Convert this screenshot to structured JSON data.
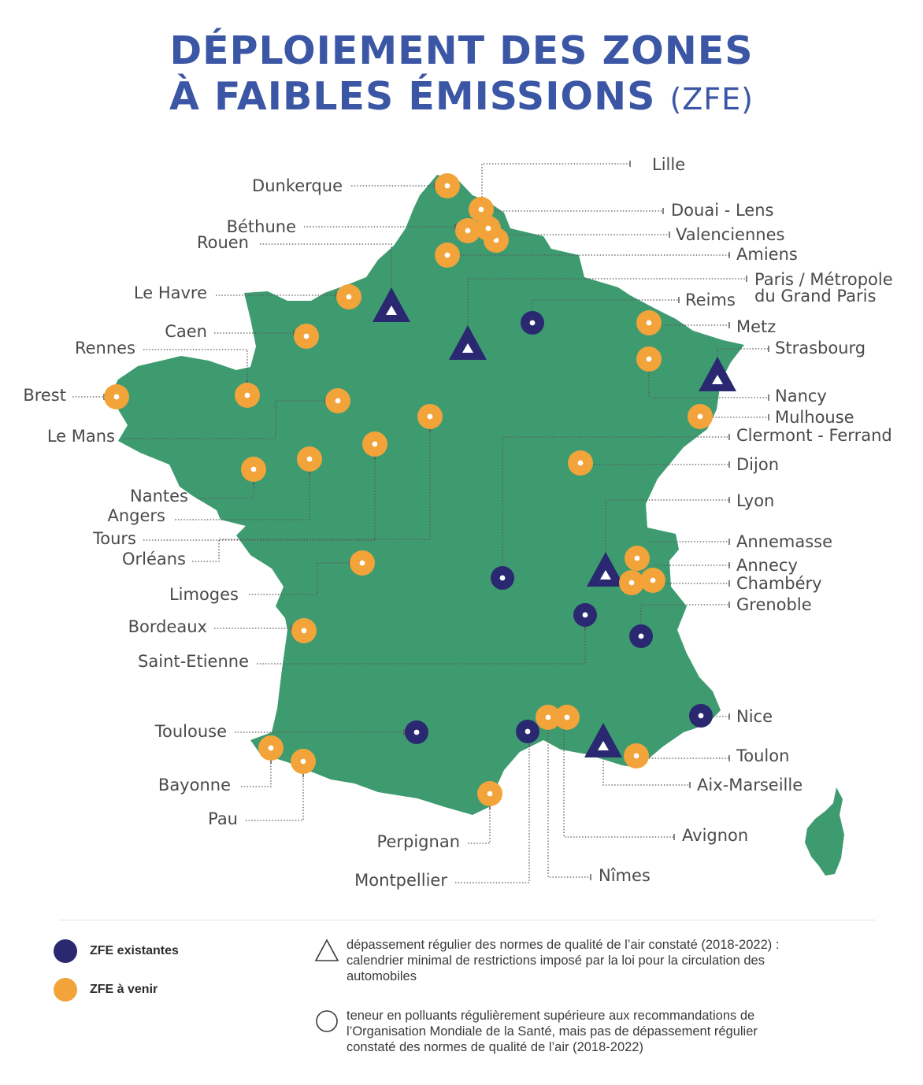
{
  "title": {
    "line1": "DÉPLOIEMENT DES ZONES",
    "line2": "À FAIBLES ÉMISSIONS",
    "abbr": "(ZFE)"
  },
  "colors": {
    "land": "#3e9b70",
    "existing": "#2a2870",
    "upcoming": "#f2a33a",
    "marker": "#2a2870"
  },
  "cities": {
    "lille": "Lille",
    "dunkerque": "Dunkerque",
    "douai_lens": "Douai - Lens",
    "bethune": "Béthune",
    "valenciennes": "Valenciennes",
    "rouen": "Rouen",
    "amiens": "Amiens",
    "paris_1": "Paris / Métropole",
    "paris_2": "du Grand Paris",
    "le_havre": "Le Havre",
    "reims": "Reims",
    "metz": "Metz",
    "caen": "Caen",
    "strasbourg": "Strasbourg",
    "rennes": "Rennes",
    "brest": "Brest",
    "nancy": "Nancy",
    "mulhouse": "Mulhouse",
    "le_mans": "Le Mans",
    "clermont": "Clermont - Ferrand",
    "dijon": "Dijon",
    "nantes": "Nantes",
    "lyon": "Lyon",
    "angers": "Angers",
    "tours": "Tours",
    "annemasse": "Annemasse",
    "orleans": "Orléans",
    "annecy": "Annecy",
    "chambery": "Chambéry",
    "limoges": "Limoges",
    "grenoble": "Grenoble",
    "bordeaux": "Bordeaux",
    "saint_etienne": "Saint-Etienne",
    "nice": "Nice",
    "toulouse": "Toulouse",
    "toulon": "Toulon",
    "bayonne": "Bayonne",
    "aix_marseille": "Aix-Marseille",
    "pau": "Pau",
    "perpignan": "Perpignan",
    "avignon": "Avignon",
    "montpellier": "Montpellier",
    "nimes": "Nîmes"
  },
  "legend": {
    "existing": "ZFE existantes",
    "upcoming": "ZFE à venir",
    "triangle_note_1": "dépassement régulier des normes de qualité de l’air constaté (2018-2022) :",
    "triangle_note_2": "calendrier minimal de restrictions imposé par la loi pour la circulation des",
    "triangle_note_3": "automobiles",
    "circle_note_1": "teneur en polluants régulièrement supérieure aux recommandations de",
    "circle_note_2": "l’Organisation Mondiale de la Santé, mais pas de dépassement régulier",
    "circle_note_3": "constaté des normes de qualité de l’air (2018-2022)"
  }
}
